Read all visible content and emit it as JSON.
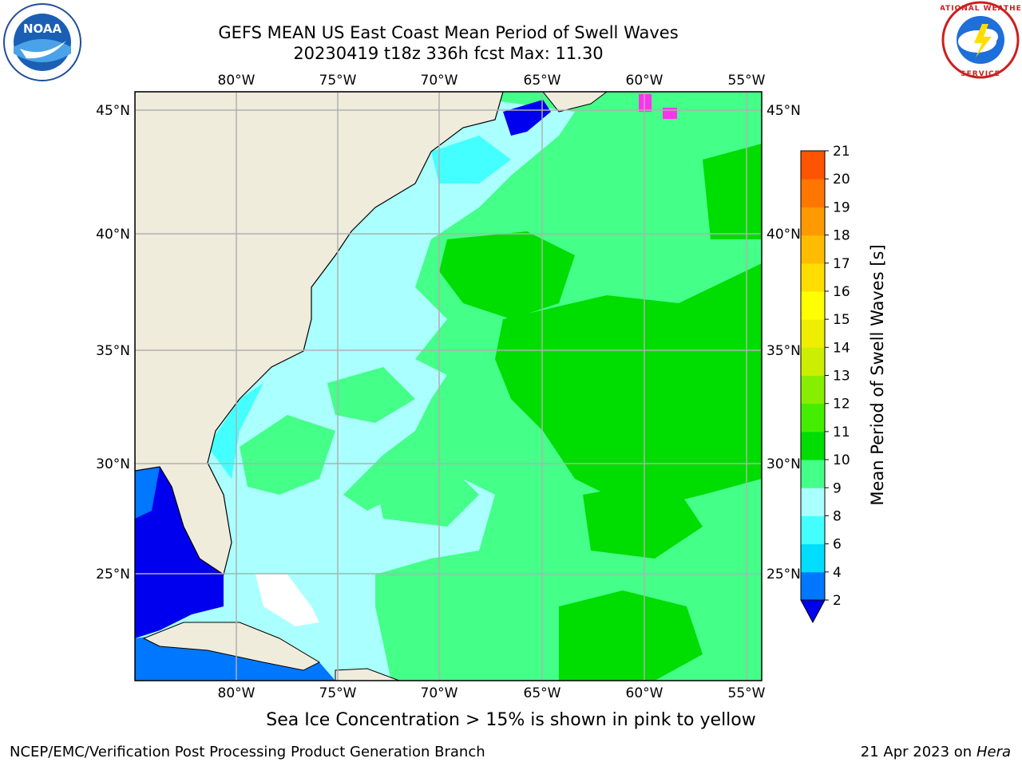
{
  "header": {
    "title_line1": "GEFS MEAN US East Coast Mean Period of Swell Waves",
    "title_line2": "20230419 t18z 336h fcst   Max: 11.30"
  },
  "logos": {
    "noaa": {
      "text": "NOAA",
      "icon": "noaa-logo-icon"
    },
    "nws": {
      "text": "NATIONAL WEATHER SERVICE",
      "icon": "nws-logo-icon"
    }
  },
  "map": {
    "lon_labels": [
      "80°W",
      "75°W",
      "70°W",
      "65°W",
      "60°W",
      "55°W"
    ],
    "lat_labels": [
      "45°N",
      "40°N",
      "35°N",
      "30°N",
      "25°N"
    ],
    "land_color": "#efecdc",
    "grid_color": "#b0b0b0"
  },
  "colorbar": {
    "label": "Mean Period of Swell Waves [s]",
    "ticks": [
      "2",
      "4",
      "6",
      "8",
      "9",
      "10",
      "11",
      "12",
      "13",
      "14",
      "15",
      "16",
      "17",
      "18",
      "19",
      "20",
      "21"
    ],
    "colors": [
      "#0077ff",
      "#00ddff",
      "#44ffff",
      "#aaffff",
      "#44ff88",
      "#00dd00",
      "#44ee00",
      "#88ee00",
      "#ccee00",
      "#eeee00",
      "#ffff00",
      "#ffdd00",
      "#ffbb00",
      "#ff9900",
      "#ff7700",
      "#ff5500",
      "#ff2200",
      "#ff0000"
    ],
    "under_color": "#0000ee"
  },
  "footer": {
    "note": "Sea Ice Concentration > 15% is shown in pink to yellow",
    "credit_left": "NCEP/EMC/Verification Post Processing Product Generation Branch",
    "credit_right_prefix": "21 Apr 2023 on ",
    "credit_right_host": "Hera"
  }
}
